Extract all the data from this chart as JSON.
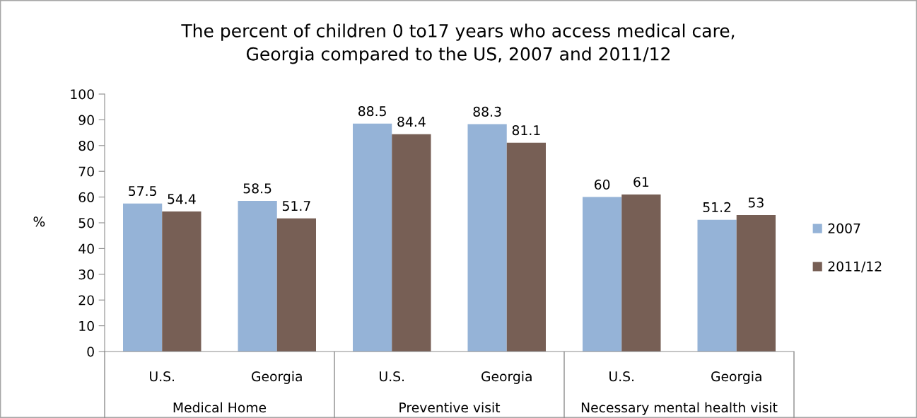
{
  "chart_data": {
    "type": "bar",
    "title": "The percent of children 0 to17 years who access medical care,\nGeorgia compared to the US, 2007 and 2011/12",
    "ylabel": "%",
    "categories": [
      "U.S.",
      "Georgia",
      "U.S.",
      "Georgia",
      "U.S.",
      "Georgia"
    ],
    "annotations": [
      "Medical Home",
      "Preventive visit",
      "Necessary mental health visit"
    ],
    "series": [
      {
        "name": "2007",
        "color": "#95b3d7",
        "values": [
          57.5,
          58.5,
          88.5,
          88.3,
          60,
          51.2
        ]
      },
      {
        "name": "2011/12",
        "color": "#775f55",
        "values": [
          54.4,
          51.7,
          84.4,
          81.1,
          61,
          53
        ]
      }
    ],
    "ylim": [
      0,
      100
    ],
    "yticks": [
      0,
      10,
      20,
      30,
      40,
      50,
      60,
      70,
      80,
      90,
      100
    ],
    "data_labels": true,
    "legend": "right",
    "grid": false
  }
}
